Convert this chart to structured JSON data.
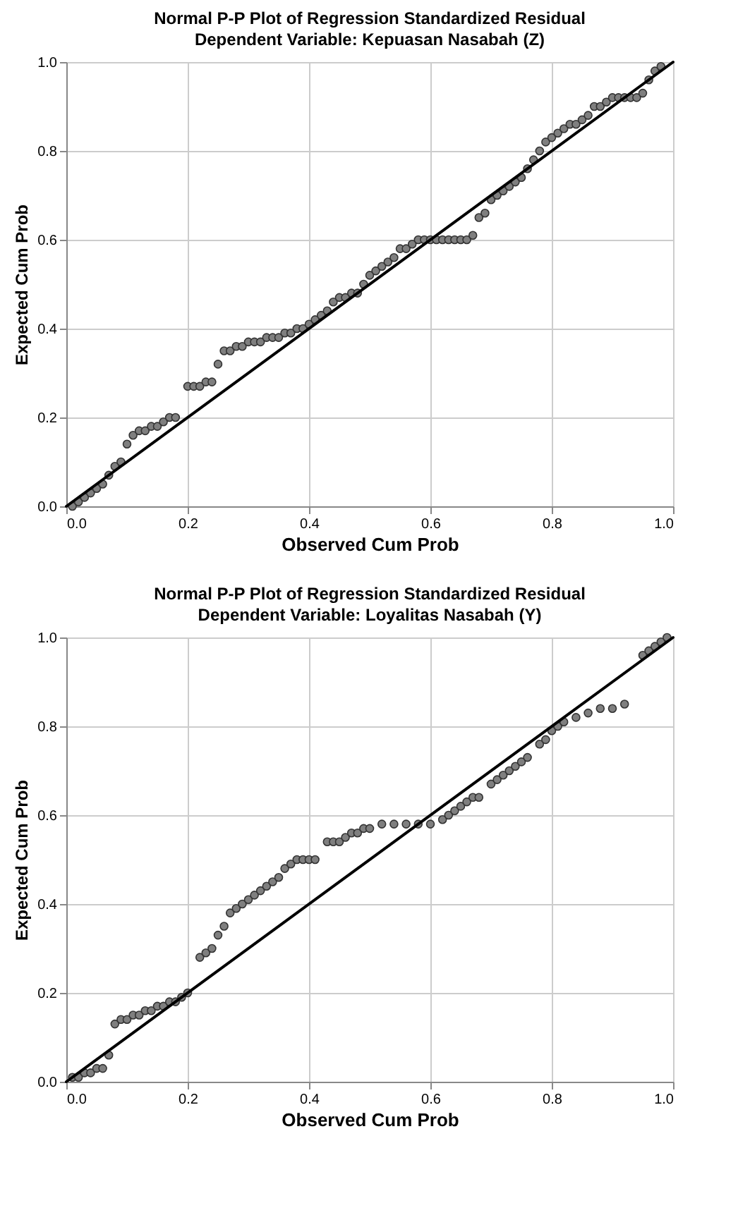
{
  "chart_data": [
    {
      "type": "scatter",
      "title": "Normal P-P Plot of Regression Standardized Residual",
      "subtitle": "Dependent Variable: Kepuasan Nasabah (Z)",
      "xlabel": "Observed Cum Prob",
      "ylabel": "Expected Cum Prob",
      "xlim": [
        0,
        1
      ],
      "ylim": [
        0,
        1
      ],
      "xticks": [
        {
          "value": 0,
          "label": "0.0"
        },
        {
          "value": 0.2,
          "label": "0.2"
        },
        {
          "value": 0.4,
          "label": "0.4"
        },
        {
          "value": 0.6,
          "label": "0.6"
        },
        {
          "value": 0.8,
          "label": "0.8"
        },
        {
          "value": 1,
          "label": "1.0"
        }
      ],
      "yticks": [
        {
          "value": 0,
          "label": "0.0"
        },
        {
          "value": 0.2,
          "label": "0.2"
        },
        {
          "value": 0.4,
          "label": "0.4"
        },
        {
          "value": 0.6,
          "label": "0.6"
        },
        {
          "value": 0.8,
          "label": "0.8"
        },
        {
          "value": 1,
          "label": "1.0"
        }
      ],
      "grid": true,
      "series": [
        {
          "marker": "circle",
          "color": "#7f7f7f",
          "x": [
            0.01,
            0.02,
            0.03,
            0.04,
            0.05,
            0.06,
            0.07,
            0.08,
            0.09,
            0.1,
            0.11,
            0.12,
            0.13,
            0.14,
            0.15,
            0.16,
            0.17,
            0.18,
            0.2,
            0.21,
            0.22,
            0.23,
            0.24,
            0.25,
            0.26,
            0.27,
            0.28,
            0.29,
            0.3,
            0.31,
            0.32,
            0.33,
            0.34,
            0.35,
            0.36,
            0.37,
            0.38,
            0.39,
            0.4,
            0.41,
            0.42,
            0.43,
            0.44,
            0.45,
            0.46,
            0.47,
            0.48,
            0.49,
            0.5,
            0.51,
            0.52,
            0.53,
            0.54,
            0.55,
            0.56,
            0.57,
            0.58,
            0.59,
            0.6,
            0.61,
            0.62,
            0.63,
            0.64,
            0.65,
            0.66,
            0.67,
            0.68,
            0.69,
            0.7,
            0.71,
            0.72,
            0.73,
            0.74,
            0.75,
            0.76,
            0.77,
            0.78,
            0.79,
            0.8,
            0.81,
            0.82,
            0.83,
            0.84,
            0.85,
            0.86,
            0.87,
            0.88,
            0.89,
            0.9,
            0.91,
            0.92,
            0.93,
            0.94,
            0.95,
            0.96,
            0.97,
            0.98
          ],
          "values": [
            0.0,
            0.01,
            0.02,
            0.03,
            0.04,
            0.05,
            0.07,
            0.09,
            0.1,
            0.14,
            0.16,
            0.17,
            0.17,
            0.18,
            0.18,
            0.19,
            0.2,
            0.2,
            0.27,
            0.27,
            0.27,
            0.28,
            0.28,
            0.32,
            0.35,
            0.35,
            0.36,
            0.36,
            0.37,
            0.37,
            0.37,
            0.38,
            0.38,
            0.38,
            0.39,
            0.39,
            0.4,
            0.4,
            0.41,
            0.42,
            0.43,
            0.44,
            0.46,
            0.47,
            0.47,
            0.48,
            0.48,
            0.5,
            0.52,
            0.53,
            0.54,
            0.55,
            0.56,
            0.58,
            0.58,
            0.59,
            0.6,
            0.6,
            0.6,
            0.6,
            0.6,
            0.6,
            0.6,
            0.6,
            0.6,
            0.61,
            0.65,
            0.66,
            0.69,
            0.7,
            0.71,
            0.72,
            0.73,
            0.74,
            0.76,
            0.78,
            0.8,
            0.82,
            0.83,
            0.84,
            0.85,
            0.86,
            0.86,
            0.87,
            0.88,
            0.9,
            0.9,
            0.91,
            0.92,
            0.92,
            0.92,
            0.92,
            0.92,
            0.93,
            0.96,
            0.98,
            0.99
          ]
        },
        {
          "type": "line",
          "color": "#000000",
          "x": [
            0,
            1
          ],
          "values": [
            0,
            1
          ]
        }
      ]
    },
    {
      "type": "scatter",
      "title": "Normal P-P Plot of Regression Standardized Residual",
      "subtitle": "Dependent Variable: Loyalitas Nasabah (Y)",
      "xlabel": "Observed Cum Prob",
      "ylabel": "Expected Cum Prob",
      "xlim": [
        0,
        1
      ],
      "ylim": [
        0,
        1
      ],
      "xticks": [
        {
          "value": 0,
          "label": "0.0"
        },
        {
          "value": 0.2,
          "label": "0.2"
        },
        {
          "value": 0.4,
          "label": "0.4"
        },
        {
          "value": 0.6,
          "label": "0.6"
        },
        {
          "value": 0.8,
          "label": "0.8"
        },
        {
          "value": 1,
          "label": "1.0"
        }
      ],
      "yticks": [
        {
          "value": 0,
          "label": "0.0"
        },
        {
          "value": 0.2,
          "label": "0.2"
        },
        {
          "value": 0.4,
          "label": "0.4"
        },
        {
          "value": 0.6,
          "label": "0.6"
        },
        {
          "value": 0.8,
          "label": "0.8"
        },
        {
          "value": 1,
          "label": "1.0"
        }
      ],
      "grid": true,
      "series": [
        {
          "marker": "circle",
          "color": "#7f7f7f",
          "x": [
            0.01,
            0.02,
            0.03,
            0.04,
            0.05,
            0.06,
            0.07,
            0.08,
            0.09,
            0.1,
            0.11,
            0.12,
            0.13,
            0.14,
            0.15,
            0.16,
            0.17,
            0.18,
            0.19,
            0.2,
            0.22,
            0.23,
            0.24,
            0.25,
            0.26,
            0.27,
            0.28,
            0.29,
            0.3,
            0.31,
            0.32,
            0.33,
            0.34,
            0.35,
            0.36,
            0.37,
            0.38,
            0.39,
            0.4,
            0.41,
            0.43,
            0.44,
            0.45,
            0.46,
            0.47,
            0.48,
            0.49,
            0.5,
            0.52,
            0.54,
            0.56,
            0.58,
            0.6,
            0.62,
            0.63,
            0.64,
            0.65,
            0.66,
            0.67,
            0.68,
            0.7,
            0.71,
            0.72,
            0.73,
            0.74,
            0.75,
            0.76,
            0.78,
            0.79,
            0.8,
            0.81,
            0.82,
            0.84,
            0.86,
            0.88,
            0.9,
            0.92,
            0.95,
            0.96,
            0.97,
            0.98,
            0.99
          ],
          "values": [
            0.01,
            0.01,
            0.02,
            0.02,
            0.03,
            0.03,
            0.06,
            0.13,
            0.14,
            0.14,
            0.15,
            0.15,
            0.16,
            0.16,
            0.17,
            0.17,
            0.18,
            0.18,
            0.19,
            0.2,
            0.28,
            0.29,
            0.3,
            0.33,
            0.35,
            0.38,
            0.39,
            0.4,
            0.41,
            0.42,
            0.43,
            0.44,
            0.45,
            0.46,
            0.48,
            0.49,
            0.5,
            0.5,
            0.5,
            0.5,
            0.54,
            0.54,
            0.54,
            0.55,
            0.56,
            0.56,
            0.57,
            0.57,
            0.58,
            0.58,
            0.58,
            0.58,
            0.58,
            0.59,
            0.6,
            0.61,
            0.62,
            0.63,
            0.64,
            0.64,
            0.67,
            0.68,
            0.69,
            0.7,
            0.71,
            0.72,
            0.73,
            0.76,
            0.77,
            0.79,
            0.8,
            0.81,
            0.82,
            0.83,
            0.84,
            0.84,
            0.85,
            0.96,
            0.97,
            0.98,
            0.99,
            1.0
          ]
        },
        {
          "type": "line",
          "color": "#000000",
          "x": [
            0,
            1
          ],
          "values": [
            0,
            1
          ]
        }
      ]
    }
  ]
}
